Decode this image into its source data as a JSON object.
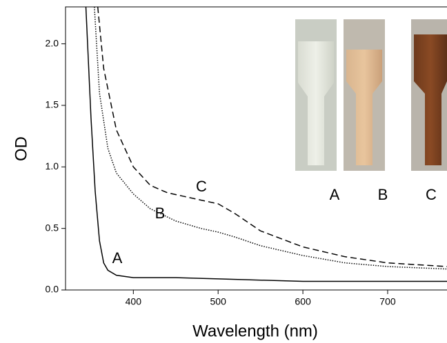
{
  "chart_data": {
    "type": "line",
    "xlabel": "Wavelength (nm)",
    "ylabel": "OD",
    "xlim": [
      320,
      770
    ],
    "ylim": [
      0,
      2.3
    ],
    "xticks": [
      400,
      500,
      600,
      700
    ],
    "yticks": [
      {
        "value": 0,
        "label": "0.0"
      },
      0.5,
      {
        "value": 1,
        "label": "1.0"
      },
      1.5,
      {
        "value": 2,
        "label": "2.0"
      }
    ],
    "series": [
      {
        "name": "A",
        "color": "#000000",
        "dash": "solid",
        "x": [
          344,
          350,
          355,
          360,
          365,
          370,
          380,
          400,
          450,
          500,
          550,
          600,
          700,
          770
        ],
        "values": [
          2.3,
          1.4,
          0.8,
          0.4,
          0.22,
          0.16,
          0.12,
          0.1,
          0.1,
          0.09,
          0.08,
          0.07,
          0.07,
          0.07
        ]
      },
      {
        "name": "B",
        "color": "#000000",
        "dash": "dotted",
        "x": [
          354,
          360,
          370,
          380,
          400,
          420,
          450,
          480,
          500,
          520,
          550,
          600,
          650,
          700,
          770
        ],
        "values": [
          2.3,
          1.6,
          1.15,
          0.95,
          0.78,
          0.66,
          0.56,
          0.5,
          0.47,
          0.43,
          0.36,
          0.28,
          0.22,
          0.19,
          0.17
        ]
      },
      {
        "name": "C",
        "color": "#000000",
        "dash": "dashed",
        "x": [
          358,
          365,
          380,
          400,
          420,
          440,
          460,
          480,
          500,
          520,
          550,
          600,
          650,
          700,
          770
        ],
        "values": [
          2.3,
          1.8,
          1.3,
          1.0,
          0.85,
          0.79,
          0.76,
          0.73,
          0.7,
          0.62,
          0.48,
          0.35,
          0.27,
          0.22,
          0.19
        ]
      }
    ]
  },
  "inset": {
    "labels": [
      "A",
      "B",
      "C"
    ]
  }
}
